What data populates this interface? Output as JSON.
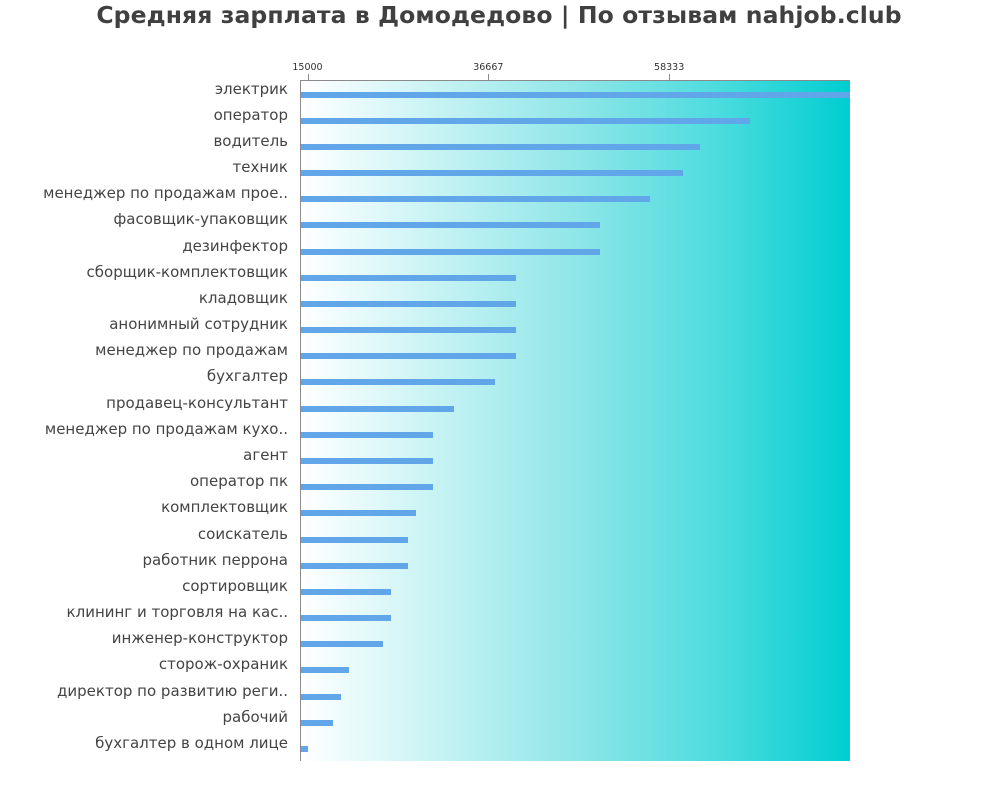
{
  "title": "Средняя зарплата в Домодедово | По отзывам nahjob.club",
  "axis": {
    "ticks": [
      {
        "label": "15000",
        "value": 15000
      },
      {
        "label": "36667",
        "value": 36667
      },
      {
        "label": "58333",
        "value": 58333
      }
    ]
  },
  "colors": {
    "bar": "#62a6ea",
    "gradient_start": "#ffffff",
    "gradient_end": "#00ced1",
    "title": "#404040",
    "label": "#444444"
  },
  "chart_data": {
    "type": "bar",
    "orientation": "horizontal",
    "title": "Средняя зарплата в Домодедово | По отзывам nahjob.club",
    "xlabel": "",
    "ylabel": "",
    "xlim": [
      14100,
      80000
    ],
    "x_ticks": [
      15000,
      36667,
      58333
    ],
    "grid": false,
    "legend": null,
    "categories": [
      "электрик",
      "оператор",
      "водитель",
      "техник",
      "менеджер по продажам прое..",
      "фасовщик-упаковщик",
      "дезинфектор",
      "сборщик-комплектовщик",
      "кладовщик",
      "анонимный сотрудник",
      "менеджер по продажам",
      "бухгалтер",
      "продавец-консультант",
      "менеджер по продажам кухо..",
      "агент",
      "оператор пк",
      "комплектовщик",
      "соискатель",
      "работник перрона",
      "сортировщик",
      "клининг и торговля на кас..",
      "инженер-конструктор",
      "сторож-охраник",
      "директор по развитию реги..",
      "рабочий",
      "бухгалтер в одном лице"
    ],
    "values": [
      80000,
      68000,
      62000,
      60000,
      56000,
      50000,
      50000,
      40000,
      40000,
      40000,
      40000,
      37500,
      32500,
      30000,
      30000,
      30000,
      28000,
      27000,
      27000,
      25000,
      25000,
      24000,
      20000,
      19000,
      18000,
      15000
    ]
  }
}
